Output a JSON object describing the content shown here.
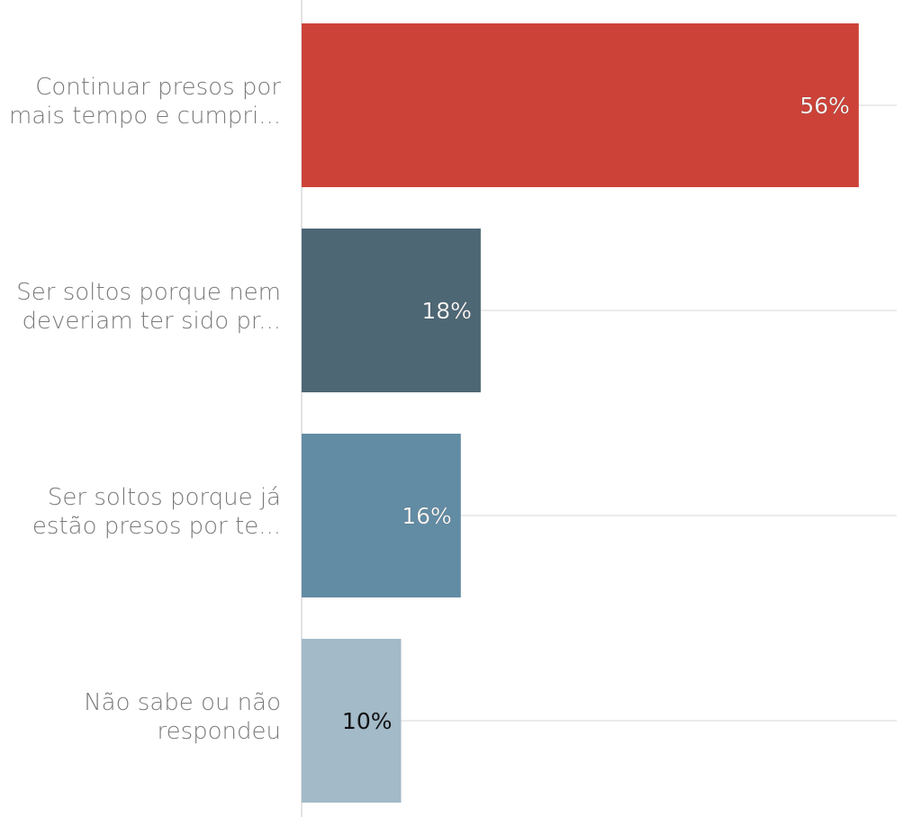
{
  "chart_data": {
    "type": "bar",
    "orientation": "horizontal",
    "categories": [
      [
        "Continuar presos por",
        "mais tempo e cumpri..."
      ],
      [
        "Ser soltos porque nem",
        "deveriam ter sido pr..."
      ],
      [
        "Ser soltos porque já",
        "estão presos por te..."
      ],
      [
        "Não sabe ou não",
        "respondeu"
      ]
    ],
    "values": [
      56,
      18,
      16,
      10
    ],
    "value_labels": [
      "56%",
      "18%",
      "16%",
      "10%"
    ],
    "colors": [
      "#cc4238",
      "#4e6775",
      "#628ca4",
      "#a3bac8"
    ],
    "label_colors": [
      "#ffffff",
      "#ffffff",
      "#ffffff",
      "#111111"
    ],
    "xlim": [
      0,
      60
    ],
    "grid": true,
    "legend": "none"
  }
}
